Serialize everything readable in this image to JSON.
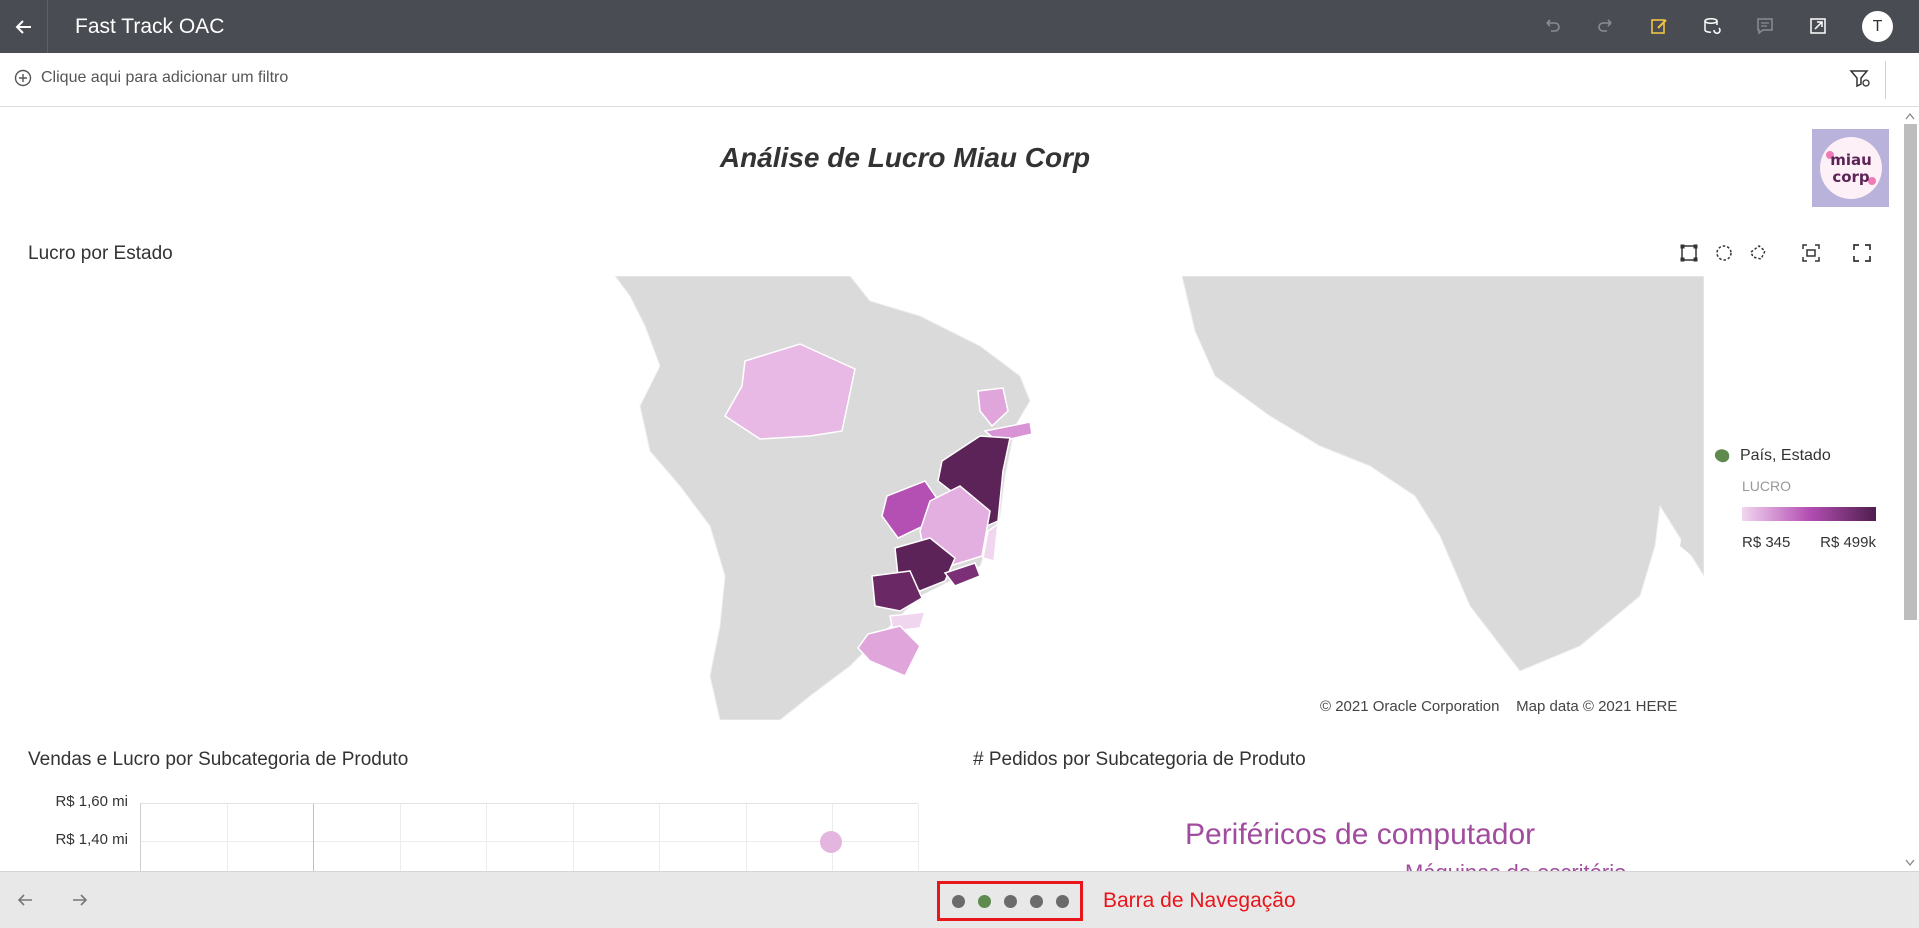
{
  "header": {
    "title": "Fast Track OAC",
    "avatar_letter": "T",
    "icons": [
      "back-arrow-icon",
      "undo-icon",
      "redo-icon",
      "edit-icon",
      "data-refresh-icon",
      "comment-icon",
      "export-icon"
    ]
  },
  "filter_bar": {
    "add_filter_label": "Clique aqui para adicionar um filtro"
  },
  "canvas": {
    "title": "Análise de Lucro Miau Corp",
    "logo_text": "miau corp"
  },
  "map_viz": {
    "title": "Lucro por Estado",
    "attribution_oracle": "© 2021 Oracle Corporation",
    "attribution_here": "Map data © 2021 HERE",
    "legend": {
      "layer_label": "País, Estado",
      "measure_label": "LUCRO",
      "min_label": "R$ 345",
      "max_label": "R$ 499k"
    },
    "colors": {
      "land": "#dadada",
      "low": "#e8b9e5",
      "mid": "#b44fb3",
      "high": "#5c2358",
      "legend_icon": "#5e8a4e"
    }
  },
  "sales_viz": {
    "title": "Vendas e Lucro por Subcategoria de Produto",
    "y_ticks": [
      "R$ 1,60 mi",
      "R$ 1,40 mi"
    ]
  },
  "orders_viz": {
    "title": "# Pedidos por Subcategoria de Produto",
    "words": [
      "Periféricos de computador",
      "Máquinas de escritório"
    ]
  },
  "nav": {
    "label": "Barra de Navegação",
    "pages": [
      {
        "active": false
      },
      {
        "active": true
      },
      {
        "active": false
      },
      {
        "active": false
      },
      {
        "active": false
      }
    ]
  }
}
